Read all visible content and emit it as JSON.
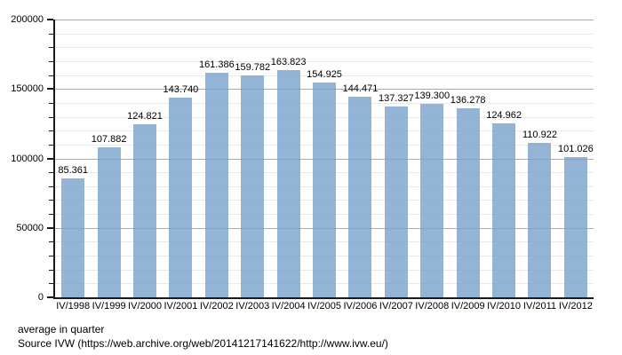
{
  "chart_data": {
    "type": "bar",
    "title": "",
    "categories": [
      "IV/1998",
      "IV/1999",
      "IV/2000",
      "IV/2001",
      "IV/2002",
      "IV/2003",
      "IV/2004",
      "IV/2005",
      "IV/2006",
      "IV/2007",
      "IV/2008",
      "IV/2009",
      "IV/2010",
      "IV/2011",
      "IV/2012"
    ],
    "values": [
      85361,
      107882,
      124821,
      143740,
      161386,
      159782,
      163823,
      154925,
      144471,
      137327,
      139300,
      136278,
      124962,
      110922,
      101026
    ],
    "value_labels": [
      "85.361",
      "107.882",
      "124.821",
      "143.740",
      "161.386",
      "159.782",
      "163.823",
      "154.925",
      "144.471",
      "137.327",
      "139.300",
      "136.278",
      "124.962",
      "110.922",
      "101.026"
    ],
    "xlabel": "",
    "ylabel": "",
    "ylim": [
      0,
      200000
    ],
    "ytick_values": [
      0,
      50000,
      100000,
      150000,
      200000
    ],
    "ytick_labels": [
      "0",
      "50000",
      "100000",
      "150000",
      "200000"
    ],
    "minor_step": 10000,
    "major_step": 50000,
    "grid": "on",
    "legend": "none",
    "bar_color": "#94b4d5"
  },
  "footer": {
    "line1": "average in quarter",
    "line2": "Source IVW (https://web.archive.org/web/20141217141622/http://www.ivw.eu/)"
  }
}
